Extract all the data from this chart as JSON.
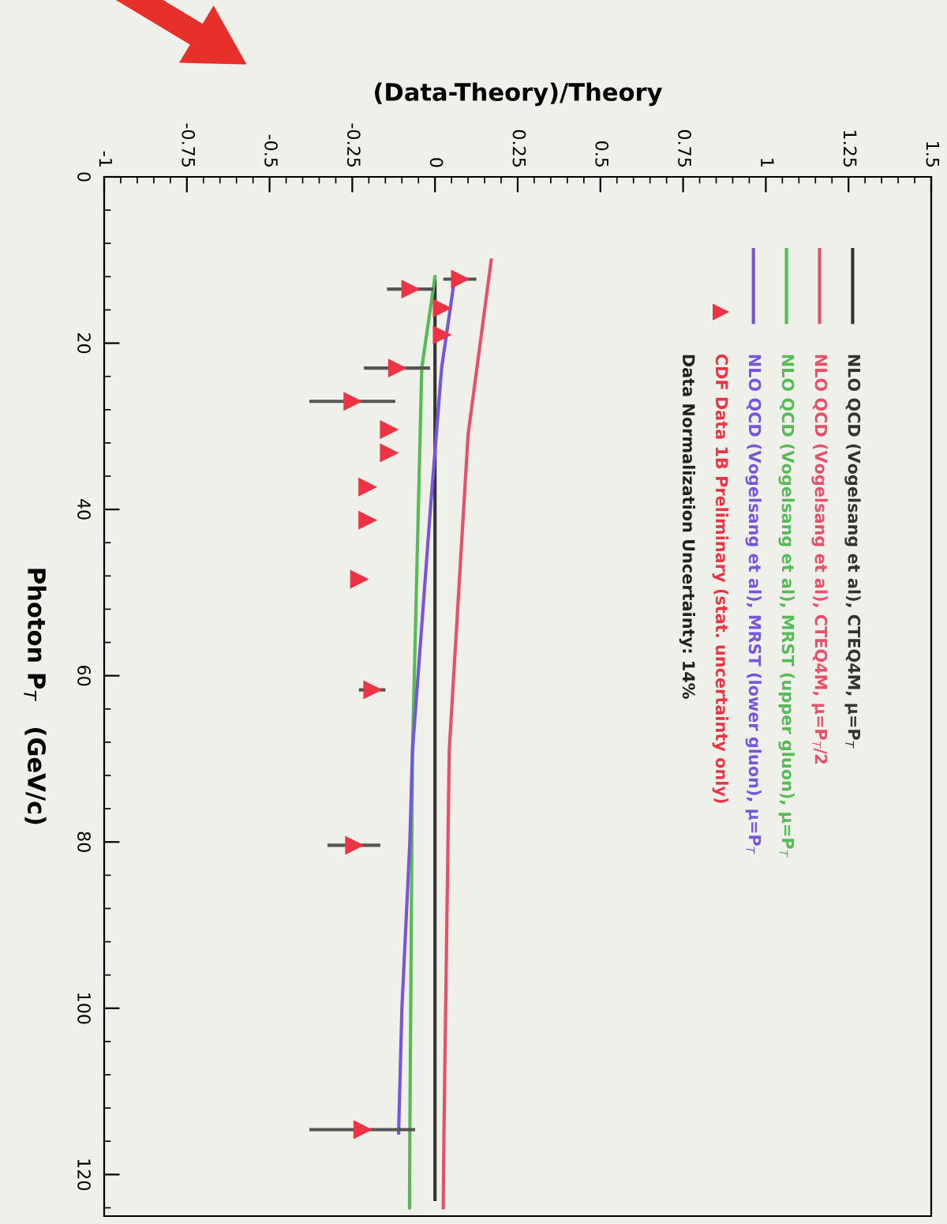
{
  "chart_data": {
    "type": "line",
    "xlabel": "(Data-Theory)/Theory",
    "ylabel": "Photon P$_{T}$   (GeV/c)",
    "xlim": [
      -1,
      1.5
    ],
    "xticks": [
      -1,
      -0.75,
      -0.5,
      -0.25,
      0,
      0.25,
      0.5,
      0.75,
      1,
      1.25,
      1.5
    ],
    "ylim": [
      125,
      0
    ],
    "yticks": [
      0,
      20,
      40,
      60,
      80,
      100,
      120
    ],
    "grid": false,
    "legend": "top right",
    "line_style": "solid",
    "series": [
      {
        "name": "NLO QCD (Vogelsang et al), CTEQ4M, μ=P$_{T}$",
        "color": "#333333",
        "x": [
          0,
          0,
          0
        ],
        "values": [
          12.5,
          60,
          123
        ]
      },
      {
        "name": "NLO QCD (Vogelsang et al), CTEQ4M, μ=P$_{T}$/2",
        "color": "#e8506a",
        "x": [
          0.17,
          0.1,
          0.043,
          0.027,
          0.025
        ],
        "values": [
          10,
          31,
          69,
          115,
          124
        ]
      },
      {
        "name": "NLO QCD (Vogelsang et al), MRST (upper gluon), μ=P$_{T}$",
        "color": "#55bb55",
        "x": [
          0,
          -0.04,
          -0.068,
          -0.076,
          -0.077
        ],
        "values": [
          12,
          23,
          69,
          115,
          124
        ]
      },
      {
        "name": "NLO QCD (Vogelsang et al), MRST (lower gluon), μ=P$_{T}$",
        "color": "#7755dd",
        "x": [
          0.06,
          0.02,
          -0.014,
          -0.068,
          -0.076,
          -0.1,
          -0.11
        ],
        "values": [
          12,
          23,
          40,
          69,
          80,
          100,
          115
        ]
      },
      {
        "name": "CDF Data 1B Preliminary (stat. uncertainty only)",
        "type": "scatter",
        "marker": "triangle",
        "color": "#ee3344",
        "x": [
          0.075,
          -0.075,
          0.02,
          0.02,
          -0.115,
          -0.25,
          -0.14,
          -0.14,
          -0.205,
          -0.205,
          -0.23,
          -0.19,
          -0.245,
          -0.22
        ],
        "values": [
          12.3,
          13.5,
          15.8,
          19,
          23,
          27,
          30.4,
          33.2,
          37.3,
          41.3,
          48.4,
          61.7,
          80.4,
          114.6
        ],
        "xerrors": [
          0.05,
          0.07,
          null,
          null,
          0.1,
          0.13,
          null,
          null,
          null,
          null,
          null,
          0.04,
          0.08,
          0.16
        ]
      }
    ],
    "annotations": [
      "Data Normalization Uncertainty: 14%"
    ]
  }
}
